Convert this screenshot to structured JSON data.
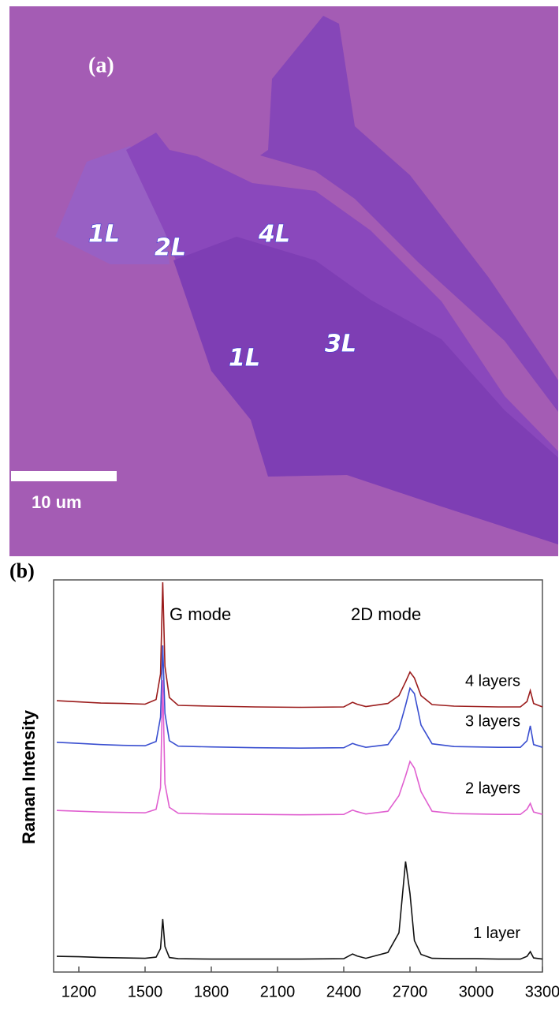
{
  "figure_a": {
    "panel_label": "(a)",
    "layer_labels": [
      "1L",
      "2L",
      "4L",
      "1L",
      "3L"
    ],
    "scale_bar": "10 um"
  },
  "chart_data": {
    "type": "line",
    "panel_label": "(b)",
    "y_label": "Raman Intensity",
    "annotations": [
      "G mode",
      "2D mode"
    ],
    "x": [
      1100,
      1200,
      1300,
      1400,
      1500,
      1550,
      1570,
      1580,
      1590,
      1610,
      1650,
      1800,
      2000,
      2200,
      2400,
      2440,
      2460,
      2500,
      2600,
      2650,
      2680,
      2700,
      2720,
      2750,
      2800,
      2900,
      3000,
      3100,
      3200,
      3230,
      3245,
      3260,
      3300
    ],
    "series": [
      {
        "name": "4 layers",
        "color": "#9b1c1c",
        "values": [
          69.2,
          68.9,
          68.6,
          68.5,
          68.3,
          69.5,
          76,
          99.4,
          78,
          70,
          68,
          67.8,
          67.6,
          67.5,
          67.6,
          68.8,
          68.3,
          67.7,
          68.5,
          70.5,
          74,
          76.5,
          75,
          70.5,
          68.2,
          67.8,
          67.7,
          67.6,
          67.6,
          69,
          71.8,
          68.5,
          67.6
        ]
      },
      {
        "name": "3 layers",
        "color": "#3a4fd0",
        "values": [
          58.6,
          58.3,
          58,
          57.8,
          57.7,
          58.8,
          65,
          83.3,
          66,
          59,
          57.6,
          57.4,
          57.2,
          57.1,
          57.2,
          58.3,
          57.9,
          57.3,
          58,
          62,
          68,
          72.4,
          71,
          63,
          58.2,
          57.5,
          57.4,
          57.3,
          57.3,
          59,
          62.8,
          58,
          57.3
        ]
      },
      {
        "name": "2 layers",
        "color": "#e060d0",
        "values": [
          41.2,
          41,
          40.8,
          40.7,
          40.6,
          41.5,
          47,
          74.4,
          48,
          42,
          40.5,
          40.3,
          40.2,
          40.1,
          40.2,
          41.3,
          40.9,
          40.3,
          41,
          45,
          50,
          53.7,
          52,
          46,
          41,
          40.4,
          40.3,
          40.2,
          40.2,
          41.5,
          43,
          40.8,
          40.2
        ]
      },
      {
        "name": "1 layer",
        "color": "#111111",
        "values": [
          4,
          3.9,
          3.7,
          3.6,
          3.5,
          3.8,
          6,
          13.5,
          6.5,
          3.7,
          3.4,
          3.3,
          3.3,
          3.3,
          3.4,
          4.6,
          4.1,
          3.5,
          5,
          10,
          28.2,
          20,
          8,
          4.5,
          3.5,
          3.4,
          3.4,
          3.3,
          3.3,
          4,
          5.2,
          3.6,
          3.3
        ]
      }
    ],
    "xlim": [
      1100,
      3300
    ],
    "xticks": [
      1200,
      1500,
      1800,
      2100,
      2400,
      2700,
      3000,
      3300
    ],
    "ylim": [
      0,
      100
    ]
  }
}
